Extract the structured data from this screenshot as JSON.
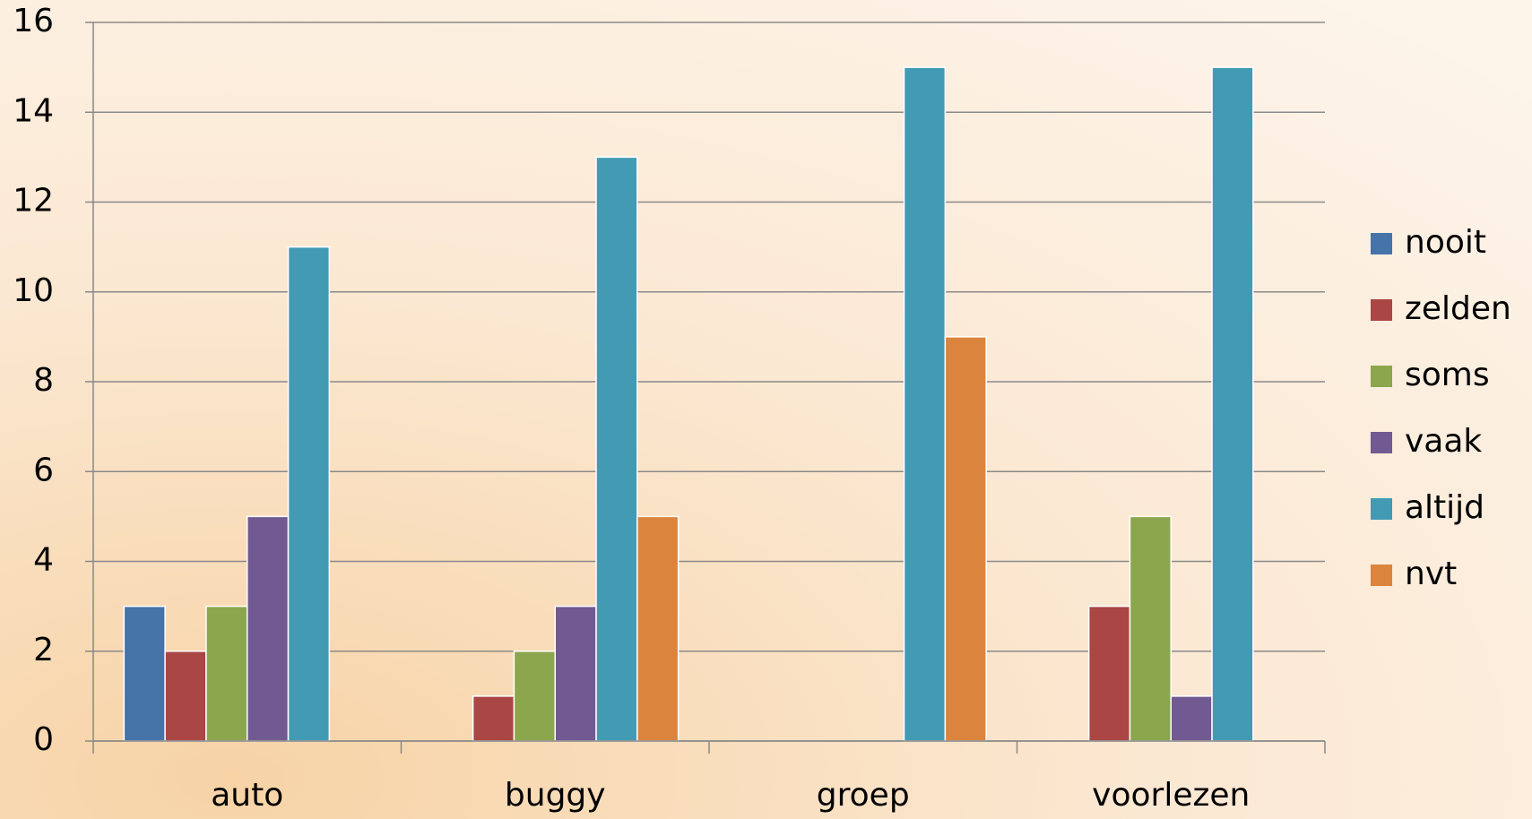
{
  "chart_data": {
    "type": "bar",
    "categories": [
      "auto",
      "buggy",
      "groep",
      "voorlezen"
    ],
    "series": [
      {
        "name": "nooit",
        "color": "#4674a8",
        "values": [
          3,
          0,
          0,
          0
        ]
      },
      {
        "name": "zelden",
        "color": "#aa4644",
        "values": [
          2,
          1,
          0,
          3
        ]
      },
      {
        "name": "soms",
        "color": "#8ba64d",
        "values": [
          3,
          2,
          0,
          5
        ]
      },
      {
        "name": "vaak",
        "color": "#715a91",
        "values": [
          5,
          3,
          0,
          1
        ]
      },
      {
        "name": "altijd",
        "color": "#429bb3",
        "values": [
          11,
          13,
          15,
          15
        ]
      },
      {
        "name": "nvt",
        "color": "#db843e",
        "values": [
          0,
          5,
          9,
          0
        ]
      }
    ],
    "ylim": [
      0,
      16
    ],
    "yticks": [
      0,
      2,
      4,
      6,
      8,
      10,
      12,
      14,
      16
    ],
    "grid": true,
    "legend": "right"
  }
}
